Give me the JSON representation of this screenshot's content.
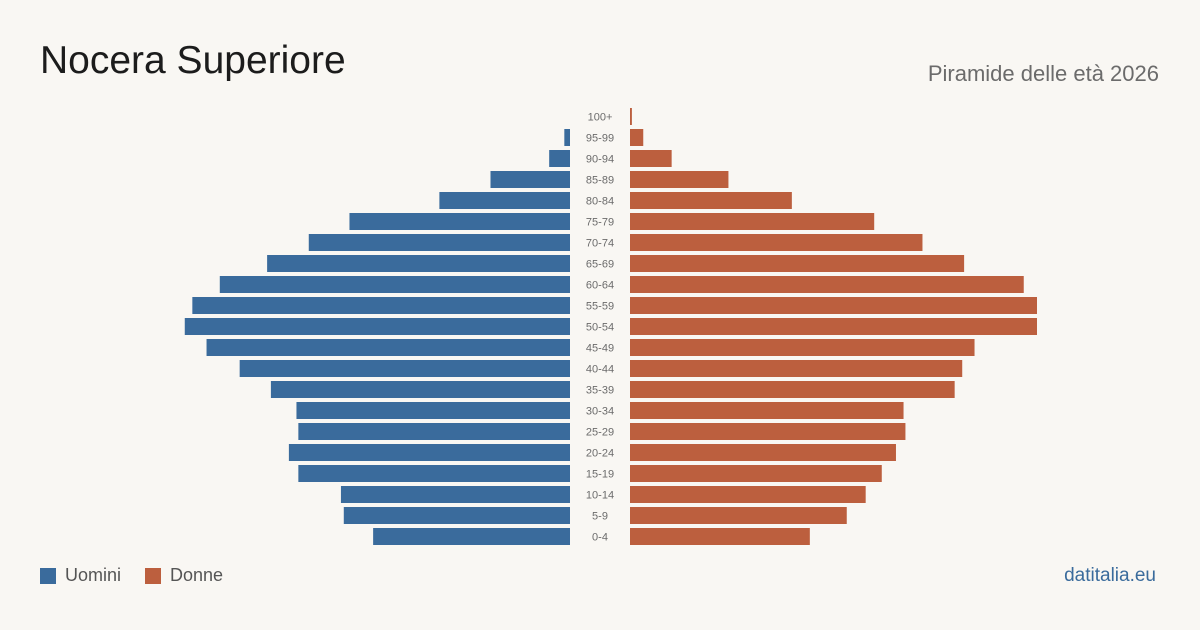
{
  "header": {
    "title": "Nocera Superiore",
    "subtitle": "Piramide delle età 2026"
  },
  "legend": {
    "men_label": "Uomini",
    "women_label": "Donne"
  },
  "footer": {
    "brand": "datitalia.eu"
  },
  "colors": {
    "men": "#3a6b9c",
    "women": "#bc5f3e",
    "background": "#f9f7f3"
  },
  "chart_data": {
    "type": "bar",
    "orientation": "horizontal-pyramid",
    "title": "Nocera Superiore",
    "subtitle": "Piramide delle età 2026",
    "categories": [
      "0-4",
      "5-9",
      "10-14",
      "15-19",
      "20-24",
      "25-29",
      "30-34",
      "35-39",
      "40-44",
      "45-49",
      "50-54",
      "55-59",
      "60-64",
      "65-69",
      "70-74",
      "75-79",
      "80-84",
      "85-89",
      "90-94",
      "95-99",
      "100+"
    ],
    "series": [
      {
        "name": "Uomini",
        "values": [
          208,
          239,
          242,
          287,
          297,
          287,
          289,
          316,
          349,
          384,
          407,
          399,
          370,
          320,
          276,
          233,
          138,
          84,
          22,
          6,
          0
        ]
      },
      {
        "name": "Donne",
        "values": [
          190,
          229,
          249,
          266,
          281,
          291,
          289,
          343,
          351,
          364,
          430,
          430,
          416,
          353,
          309,
          258,
          171,
          104,
          44,
          14,
          2
        ]
      }
    ],
    "legend_position": "bottom-left",
    "grid": false
  }
}
